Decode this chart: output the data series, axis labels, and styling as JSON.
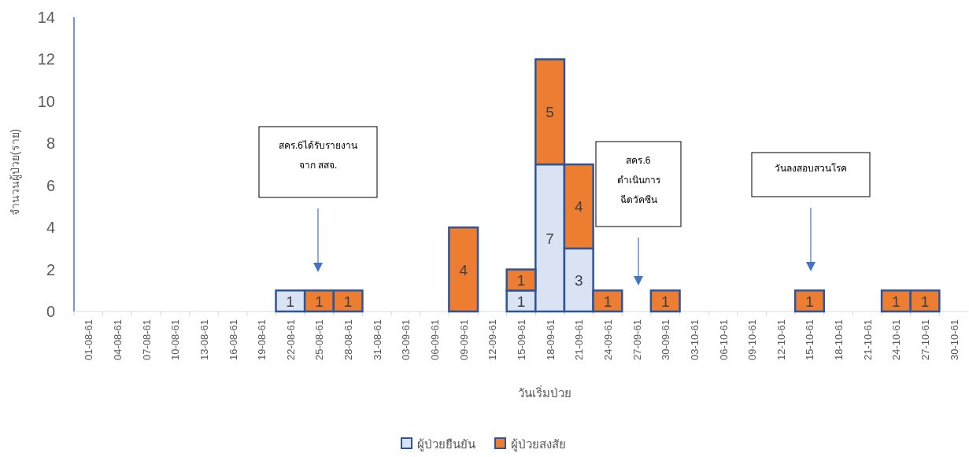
{
  "chart_data": {
    "type": "bar",
    "stacked": true,
    "xlabel": "วันเริ่มป่วย",
    "ylabel": "จำนวนผู้ป่วย(ราย)",
    "categories": [
      "01-08-61",
      "04-08-61",
      "07-08-61",
      "10-08-61",
      "13-08-61",
      "16-08-61",
      "19-08-61",
      "22-08-61",
      "25-08-61",
      "28-08-61",
      "31-08-61",
      "03-09-61",
      "06-09-61",
      "09-09-61",
      "12-09-61",
      "15-09-61",
      "18-09-61",
      "21-09-61",
      "24-09-61",
      "27-09-61",
      "30-09-61",
      "03-10-61",
      "06-10-61",
      "09-10-61",
      "12-10-61",
      "15-10-61",
      "18-10-61",
      "21-10-61",
      "24-10-61",
      "27-10-61",
      "30-10-61"
    ],
    "series": [
      {
        "name": "ผู้ป่วยยืนยัน",
        "color": "#dae3f3",
        "values": [
          null,
          null,
          null,
          null,
          null,
          null,
          null,
          1,
          null,
          null,
          null,
          null,
          null,
          null,
          null,
          1,
          7,
          3,
          null,
          null,
          null,
          null,
          null,
          null,
          null,
          null,
          null,
          null,
          null,
          null,
          null
        ]
      },
      {
        "name": "ผู้ป่วยสงสัย",
        "color": "#ed7d31",
        "values": [
          null,
          null,
          null,
          null,
          null,
          null,
          null,
          null,
          1,
          1,
          null,
          null,
          null,
          4,
          null,
          1,
          5,
          4,
          1,
          null,
          1,
          null,
          null,
          null,
          null,
          1,
          null,
          null,
          1,
          1,
          null
        ]
      }
    ],
    "ylim": [
      0,
      14
    ],
    "yticks": [
      0,
      2,
      4,
      6,
      8,
      10,
      12,
      14
    ],
    "grid": false,
    "legend": "bottom",
    "data_labels": true,
    "annotations": [
      "สคร.6ได้รับรายงาน\nจาก สสจ.",
      "สคร.6\nดำเนินการ\nฉีดวัคซีน",
      "วันลงสอบสวนโรค"
    ]
  }
}
